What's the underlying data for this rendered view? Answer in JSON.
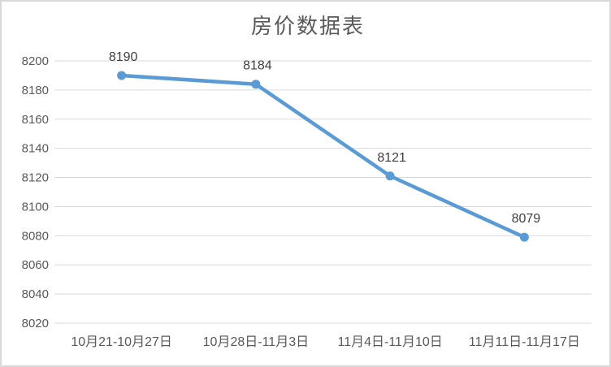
{
  "chart_data": {
    "type": "line",
    "title": "房价数据表",
    "categories": [
      "10月21-10月27日",
      "10月28日-11月3日",
      "11月4日-11月10日",
      "11月11日-11月17日"
    ],
    "values": [
      8190,
      8184,
      8121,
      8079
    ],
    "data_labels": [
      "8190",
      "8184",
      "8121",
      "8079"
    ],
    "xlabel": "",
    "ylabel": "",
    "ylim": [
      8020,
      8200
    ],
    "y_ticks": [
      8020,
      8040,
      8060,
      8080,
      8100,
      8120,
      8140,
      8160,
      8180,
      8200
    ],
    "grid": true,
    "legend": "none",
    "colors": {
      "line": "#5B9BD5",
      "marker": "#5B9BD5",
      "gridline": "#D9D9D9",
      "axis_text": "#595959",
      "data_label_text": "#404040",
      "title_text": "#595959",
      "frame_border": "#D9D9D9",
      "background": "#FFFFFF"
    }
  }
}
